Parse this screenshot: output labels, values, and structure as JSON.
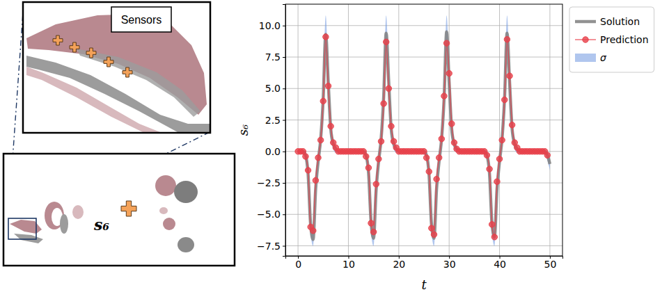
{
  "chart_data": {
    "type": "line",
    "x_label": "t",
    "y_label": "s₆",
    "x": [
      0,
      0.5,
      1,
      1.5,
      2,
      2.5,
      3,
      3.5,
      4,
      4.5,
      5,
      5.5,
      6,
      6.5,
      7,
      7.5,
      8,
      8.5,
      9,
      9.5,
      10,
      10.5,
      11,
      11.5,
      12,
      12.5,
      13,
      13.5,
      14,
      14.5,
      15,
      15.5,
      16,
      16.5,
      17,
      17.5,
      18,
      18.5,
      19,
      19.5,
      20,
      20.5,
      21,
      21.5,
      22,
      22.5,
      23,
      23.5,
      24,
      24.5,
      25,
      25.5,
      26,
      26.5,
      27,
      27.5,
      28,
      28.5,
      29,
      29.5,
      30,
      30.5,
      31,
      31.5,
      32,
      32.5,
      33,
      33.5,
      34,
      34.5,
      35,
      35.5,
      36,
      36.5,
      37,
      37.5,
      38,
      38.5,
      39,
      39.5,
      40,
      40.5,
      41,
      41.5,
      42,
      42.5,
      43,
      43.5,
      44,
      44.5,
      45,
      45.5,
      46,
      46.5,
      47,
      47.5,
      48,
      48.5,
      49,
      49.5,
      50
    ],
    "series": [
      {
        "name": "Solution",
        "type": "line",
        "color": "#808080",
        "line_style": "solid",
        "values": [
          0,
          0,
          0,
          -0.3,
          -1.8,
          -5.8,
          -7.0,
          -3.0,
          -0.8,
          1.0,
          4.2,
          9.3,
          5.5,
          1.8,
          0.6,
          0.2,
          0,
          0,
          0,
          0,
          0,
          0,
          0,
          0,
          0,
          0,
          0,
          -0.3,
          -1.7,
          -5.6,
          -6.9,
          -3.1,
          -0.8,
          1.0,
          4.3,
          9.4,
          5.6,
          1.8,
          0.6,
          0.2,
          0,
          0,
          0,
          0,
          0,
          0,
          0,
          0,
          0,
          0,
          0,
          -0.3,
          -1.8,
          -5.8,
          -6.9,
          -3.0,
          -0.8,
          1.0,
          4.2,
          9.5,
          5.5,
          1.8,
          0.6,
          0.2,
          0,
          0,
          0,
          0,
          0,
          0,
          0,
          0,
          0,
          0,
          0,
          -0.3,
          -1.7,
          -5.7,
          -6.8,
          -3.0,
          -0.8,
          1.0,
          4.2,
          9.4,
          5.5,
          1.8,
          0.6,
          0.2,
          0,
          0,
          0,
          0,
          0,
          0,
          0,
          0,
          0,
          0,
          0,
          -0.3,
          -1.0
        ]
      },
      {
        "name": "Prediction",
        "type": "line",
        "color": "#e8414b",
        "line_style": "solid",
        "marker": "circle",
        "values": [
          0,
          0,
          0,
          -0.4,
          -1.5,
          -6.0,
          -6.3,
          -2.3,
          -0.5,
          0.9,
          4.0,
          9.1,
          5.2,
          2.0,
          0.7,
          0.3,
          0,
          0,
          0,
          0,
          0,
          0,
          0,
          0,
          0,
          0,
          0,
          -0.4,
          -1.3,
          -5.7,
          -6.4,
          -2.6,
          -0.6,
          0.8,
          3.8,
          8.7,
          5.0,
          2.0,
          0.8,
          0.3,
          0,
          0,
          0,
          0,
          0,
          0,
          0,
          0,
          0,
          0,
          0,
          -0.5,
          -1.6,
          -6.1,
          -6.6,
          -2.2,
          -0.5,
          1.0,
          4.4,
          8.6,
          6.2,
          2.2,
          0.7,
          0.2,
          0,
          0,
          0,
          0,
          0,
          0,
          0,
          0,
          0,
          0,
          0,
          -0.3,
          -1.4,
          -5.8,
          -6.8,
          -2.4,
          -0.6,
          0.9,
          4.1,
          8.9,
          6.0,
          2.1,
          0.7,
          0.3,
          0,
          0,
          0,
          0,
          0,
          0,
          0,
          0,
          0,
          0,
          0,
          -0.3,
          null
        ]
      },
      {
        "name": "σ",
        "type": "area",
        "color": "#6f97e0",
        "upper": [
          0.1,
          0.1,
          0.1,
          0,
          -1.2,
          -5.1,
          -6.4,
          -2.4,
          -0.3,
          1.5,
          5.1,
          10.8,
          6.4,
          2.4,
          1.0,
          0.5,
          0.1,
          0.1,
          0.1,
          0.1,
          0.1,
          0.1,
          0.1,
          0.1,
          0.1,
          0.1,
          0.1,
          0,
          -1.2,
          -5.1,
          -6.4,
          -2.4,
          -0.3,
          1.5,
          5.1,
          10.8,
          6.4,
          2.4,
          1.0,
          0.5,
          0.1,
          0.1,
          0.1,
          0.1,
          0.1,
          0.1,
          0.1,
          0.1,
          0.1,
          0.1,
          0.1,
          0,
          -1.2,
          -5.1,
          -6.4,
          -2.4,
          -0.3,
          1.5,
          5.1,
          10.8,
          6.4,
          2.4,
          1.0,
          0.5,
          0.1,
          0.1,
          0.1,
          0.1,
          0.1,
          0.1,
          0.1,
          0.1,
          0.1,
          0.1,
          0.1,
          0,
          -1.2,
          -5.1,
          -6.4,
          -2.4,
          -0.3,
          1.5,
          5.1,
          10.8,
          6.4,
          2.4,
          1.0,
          0.5,
          0.1,
          0.1,
          0.1,
          0.1,
          0.1,
          0.1,
          0.1,
          0.1,
          0.1,
          0.1,
          0.1,
          0,
          -0.6
        ],
        "lower": [
          -0.1,
          -0.1,
          -0.2,
          -0.7,
          -2.4,
          -6.5,
          -7.5,
          -3.6,
          -1.3,
          0.5,
          3.3,
          8.0,
          4.6,
          1.2,
          0.2,
          -0.1,
          -0.1,
          -0.1,
          -0.1,
          -0.1,
          -0.1,
          -0.1,
          -0.1,
          -0.1,
          -0.1,
          -0.1,
          -0.2,
          -0.7,
          -2.4,
          -6.5,
          -7.5,
          -3.6,
          -1.3,
          0.5,
          3.3,
          8.0,
          4.6,
          1.2,
          0.2,
          -0.1,
          -0.1,
          -0.1,
          -0.1,
          -0.1,
          -0.1,
          -0.1,
          -0.1,
          -0.1,
          -0.1,
          -0.1,
          -0.2,
          -0.7,
          -2.4,
          -6.5,
          -7.5,
          -3.6,
          -1.3,
          0.5,
          3.3,
          8.0,
          4.6,
          1.2,
          0.2,
          -0.1,
          -0.1,
          -0.1,
          -0.1,
          -0.1,
          -0.1,
          -0.1,
          -0.1,
          -0.1,
          -0.1,
          -0.1,
          -0.2,
          -0.7,
          -2.4,
          -6.5,
          -7.5,
          -3.6,
          -1.3,
          0.5,
          3.3,
          8.0,
          4.6,
          1.2,
          0.2,
          -0.1,
          -0.1,
          -0.1,
          -0.1,
          -0.1,
          -0.1,
          -0.1,
          -0.1,
          -0.1,
          -0.1,
          -0.1,
          -0.2,
          -0.7,
          -1.5
        ]
      }
    ],
    "xlim": [
      -2.5,
      52.5
    ],
    "xticks": [
      0,
      10,
      20,
      30,
      40,
      50
    ],
    "ylim": [
      -8.3,
      11.7
    ],
    "yticks": [
      {
        "value": -7.5,
        "label": "−7.5"
      },
      {
        "value": -5,
        "label": "−5.0"
      },
      {
        "value": -2.5,
        "label": "−2.5"
      },
      {
        "value": 0,
        "label": "0.0"
      },
      {
        "value": 2.5,
        "label": "2.5"
      },
      {
        "value": 5,
        "label": "5.0"
      },
      {
        "value": 7.5,
        "label": "7.5"
      },
      {
        "value": 10,
        "label": "10.0"
      }
    ],
    "grid": true,
    "legend": "right"
  },
  "panel": {
    "inset_title": "Sensors",
    "probe_label": "s₆"
  }
}
